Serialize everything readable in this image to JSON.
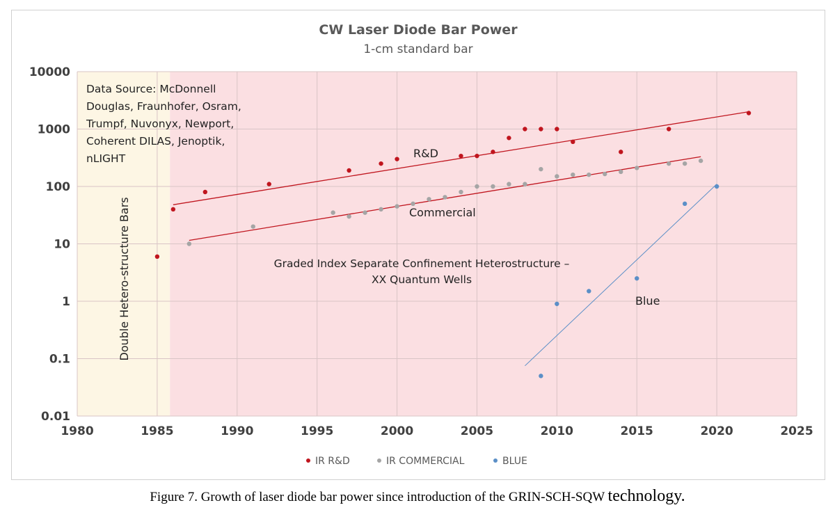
{
  "chart_data": {
    "type": "scatter",
    "title": "CW Laser Diode Bar Power",
    "subtitle": "1-cm standard bar",
    "xlabel": "",
    "ylabel": "",
    "xlim": [
      1980,
      2025
    ],
    "ylim": [
      0.01,
      10000
    ],
    "yscale": "log",
    "xticks": [
      1980,
      1985,
      1990,
      1995,
      2000,
      2005,
      2010,
      2015,
      2020,
      2025
    ],
    "ytick_labels": [
      "0.01",
      "0.1",
      "1",
      "10",
      "100",
      "1000",
      "10000"
    ],
    "grid": true,
    "legend_position": "bottom",
    "regions": [
      {
        "x": [
          1980,
          1985.8
        ],
        "color": "#fdf6e4",
        "label": "Double Hetero-structure Bars"
      },
      {
        "x": [
          1985.8,
          2025
        ],
        "color": "#fbdfe2",
        "label": "Graded Index Separate Confinement Heterostructure – XX Quantum Wells"
      }
    ],
    "annotations": {
      "source": [
        "Data Source: McDonnell",
        "Douglas, Fraunhofer, Osram,",
        "Trumpf, Nuvonyx, Newport,",
        "Coherent DILAS, Jenoptik,",
        "nLIGHT"
      ],
      "region_label_1": "Graded Index Separate Confinement Heterostructure –",
      "region_label_2": "XX Quantum Wells",
      "double_hetero": "Double Hetero-structure Bars",
      "rd_label": "R&D",
      "commercial_label": "Commercial",
      "blue_label": "Blue"
    },
    "series": [
      {
        "name": "IR R&D",
        "color": "#c0151e",
        "points": [
          [
            1985,
            6
          ],
          [
            1986,
            40
          ],
          [
            1988,
            80
          ],
          [
            1992,
            110
          ],
          [
            1997,
            190
          ],
          [
            1999,
            250
          ],
          [
            2000,
            300
          ],
          [
            2004,
            340
          ],
          [
            2005,
            340
          ],
          [
            2006,
            400
          ],
          [
            2007,
            700
          ],
          [
            2008,
            1000
          ],
          [
            2009,
            1000
          ],
          [
            2010,
            1000
          ],
          [
            2011,
            600
          ],
          [
            2014,
            400
          ],
          [
            2017,
            1000
          ],
          [
            2022,
            1900
          ]
        ],
        "trend": [
          [
            1986,
            48
          ],
          [
            2022,
            2000
          ]
        ]
      },
      {
        "name": "IR COMMERCIAL",
        "color": "#a5a5a5",
        "points": [
          [
            1987,
            10
          ],
          [
            1991,
            20
          ],
          [
            1996,
            35
          ],
          [
            1997,
            30
          ],
          [
            1998,
            35
          ],
          [
            1999,
            40
          ],
          [
            2000,
            45
          ],
          [
            2001,
            50
          ],
          [
            2002,
            60
          ],
          [
            2003,
            65
          ],
          [
            2004,
            80
          ],
          [
            2005,
            100
          ],
          [
            2006,
            100
          ],
          [
            2007,
            110
          ],
          [
            2008,
            110
          ],
          [
            2009,
            200
          ],
          [
            2010,
            150
          ],
          [
            2011,
            160
          ],
          [
            2012,
            160
          ],
          [
            2013,
            165
          ],
          [
            2014,
            180
          ],
          [
            2015,
            210
          ],
          [
            2017,
            250
          ],
          [
            2018,
            250
          ],
          [
            2019,
            280
          ]
        ],
        "trend": [
          [
            1987,
            11.5
          ],
          [
            2019,
            330
          ]
        ]
      },
      {
        "name": "BLUE",
        "color": "#5b8fc7",
        "points": [
          [
            2009,
            0.05
          ],
          [
            2010,
            0.9
          ],
          [
            2012,
            1.5
          ],
          [
            2015,
            2.5
          ],
          [
            2018,
            50
          ],
          [
            2020,
            100
          ]
        ],
        "trend": [
          [
            2008,
            0.075
          ],
          [
            2020,
            110
          ]
        ]
      }
    ]
  },
  "caption": {
    "main": "Figure 7. Growth of laser diode bar power since introduction of the GRIN-SCH-SQW ",
    "tail": "technology."
  }
}
